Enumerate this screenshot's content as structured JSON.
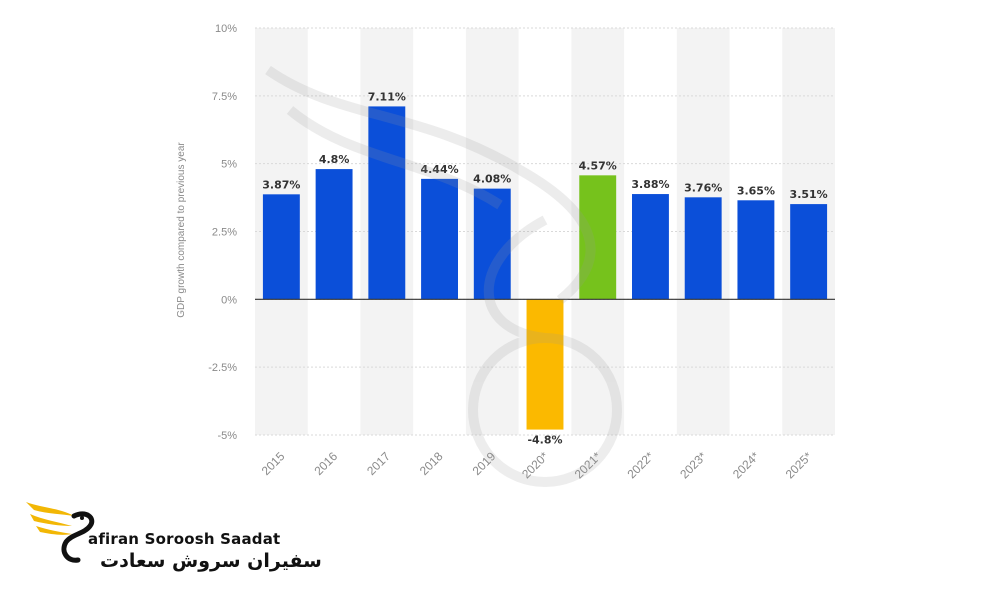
{
  "chart_data": {
    "type": "bar",
    "categories": [
      "2015",
      "2016",
      "2017",
      "2018",
      "2019",
      "2020*",
      "2021*",
      "2022*",
      "2023*",
      "2024*",
      "2025*"
    ],
    "values": [
      3.87,
      4.8,
      7.11,
      4.44,
      4.08,
      -4.8,
      4.57,
      3.88,
      3.76,
      3.65,
      3.51
    ],
    "data_labels": [
      "3.87%",
      "4.8%",
      "7.11%",
      "4.44%",
      "4.08%",
      "-4.8%",
      "4.57%",
      "3.88%",
      "3.76%",
      "3.65%",
      "3.51%"
    ],
    "bar_colors": [
      "#0b4fd9",
      "#0b4fd9",
      "#0b4fd9",
      "#0b4fd9",
      "#0b4fd9",
      "#fbb900",
      "#76c21c",
      "#0b4fd9",
      "#0b4fd9",
      "#0b4fd9",
      "#0b4fd9"
    ],
    "ylabel": "GDP growth compared to previous year",
    "xlabel": "",
    "ylim": [
      -5,
      10
    ],
    "yticks": [
      10,
      7.5,
      5,
      2.5,
      0,
      -2.5,
      -5
    ],
    "ytick_labels": [
      "10%",
      "7.5%",
      "5%",
      "2.5%",
      "0%",
      "-2.5%",
      "-5%"
    ],
    "grid": true,
    "legend": "none"
  },
  "logo": {
    "english_text": "afiran Soroosh Saadat",
    "persian_text": "سفیران سروش سعادت",
    "accent_color": "#f2b705",
    "icon": "phoenix-bird-icon"
  },
  "watermark": {
    "icon": "bird-swirl-watermark-icon"
  }
}
